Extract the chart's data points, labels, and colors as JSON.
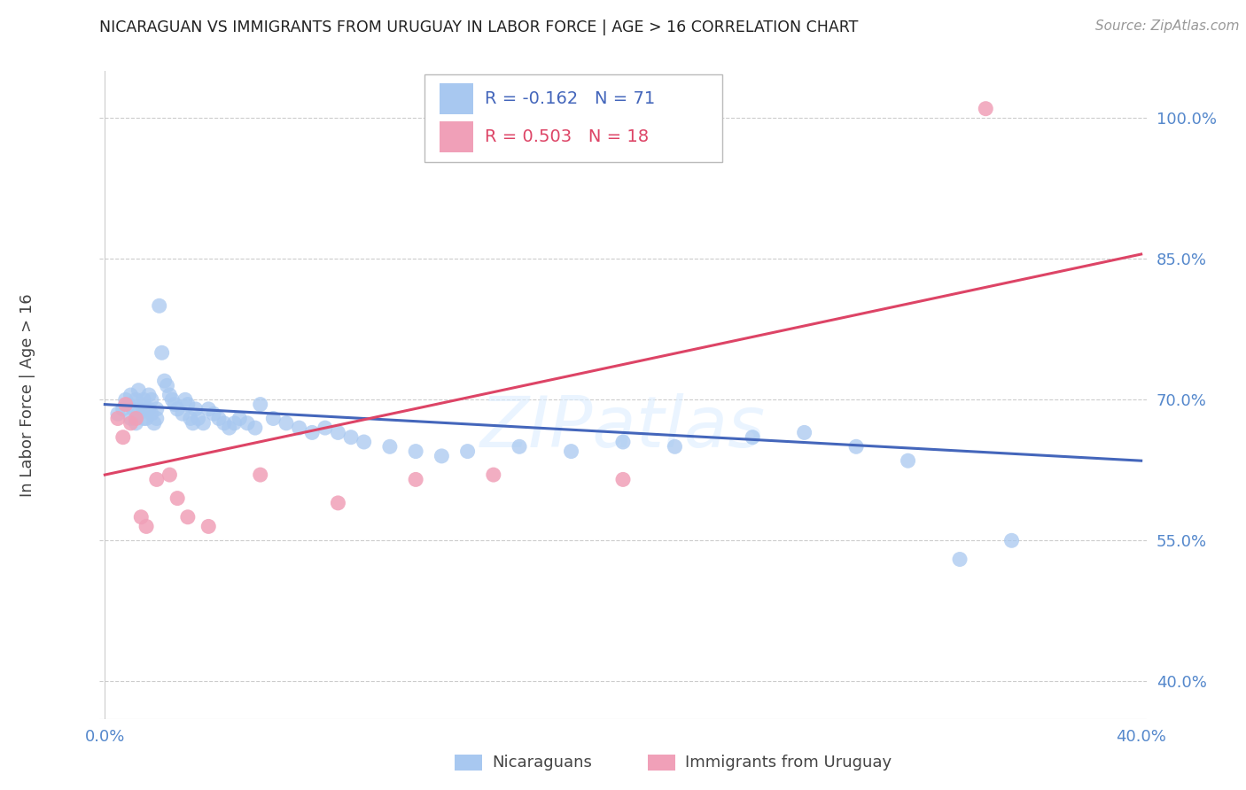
{
  "title": "NICARAGUAN VS IMMIGRANTS FROM URUGUAY IN LABOR FORCE | AGE > 16 CORRELATION CHART",
  "source": "Source: ZipAtlas.com",
  "ylabel": "In Labor Force | Age > 16",
  "yticks": [
    40.0,
    55.0,
    70.0,
    85.0,
    100.0
  ],
  "ytick_labels": [
    "40.0%",
    "55.0%",
    "70.0%",
    "85.0%",
    "100.0%"
  ],
  "ylim": [
    36.0,
    105.0
  ],
  "xlim": [
    -0.002,
    0.402
  ],
  "xticks": [
    0.0,
    0.4
  ],
  "xtick_labels": [
    "0.0%",
    "40.0%"
  ],
  "blue_R": "-0.162",
  "blue_N": "71",
  "pink_R": "0.503",
  "pink_N": "18",
  "blue_color": "#A8C8F0",
  "pink_color": "#F0A0B8",
  "blue_line_color": "#4466BB",
  "pink_line_color": "#DD4466",
  "blue_points_x": [
    0.005,
    0.007,
    0.008,
    0.009,
    0.01,
    0.01,
    0.011,
    0.012,
    0.012,
    0.013,
    0.013,
    0.014,
    0.015,
    0.015,
    0.016,
    0.016,
    0.017,
    0.017,
    0.018,
    0.018,
    0.019,
    0.02,
    0.02,
    0.021,
    0.022,
    0.023,
    0.024,
    0.025,
    0.026,
    0.027,
    0.028,
    0.03,
    0.031,
    0.032,
    0.033,
    0.034,
    0.035,
    0.036,
    0.038,
    0.04,
    0.042,
    0.044,
    0.046,
    0.048,
    0.05,
    0.052,
    0.055,
    0.058,
    0.06,
    0.065,
    0.07,
    0.075,
    0.08,
    0.085,
    0.09,
    0.095,
    0.1,
    0.11,
    0.12,
    0.13,
    0.14,
    0.16,
    0.18,
    0.2,
    0.22,
    0.25,
    0.27,
    0.29,
    0.31,
    0.33,
    0.35
  ],
  "blue_points_y": [
    68.5,
    69.0,
    70.0,
    69.5,
    68.0,
    70.5,
    69.0,
    67.5,
    70.0,
    68.5,
    71.0,
    69.5,
    68.0,
    70.0,
    69.0,
    68.0,
    70.5,
    69.0,
    68.5,
    70.0,
    67.5,
    69.0,
    68.0,
    80.0,
    75.0,
    72.0,
    71.5,
    70.5,
    70.0,
    69.5,
    69.0,
    68.5,
    70.0,
    69.5,
    68.0,
    67.5,
    69.0,
    68.0,
    67.5,
    69.0,
    68.5,
    68.0,
    67.5,
    67.0,
    67.5,
    68.0,
    67.5,
    67.0,
    69.5,
    68.0,
    67.5,
    67.0,
    66.5,
    67.0,
    66.5,
    66.0,
    65.5,
    65.0,
    64.5,
    64.0,
    64.5,
    65.0,
    64.5,
    65.5,
    65.0,
    66.0,
    66.5,
    65.0,
    63.5,
    53.0,
    55.0
  ],
  "pink_points_x": [
    0.005,
    0.007,
    0.008,
    0.01,
    0.012,
    0.014,
    0.016,
    0.02,
    0.025,
    0.028,
    0.032,
    0.04,
    0.06,
    0.09,
    0.12,
    0.15,
    0.2,
    0.34
  ],
  "pink_points_y": [
    68.0,
    66.0,
    69.5,
    67.5,
    68.0,
    57.5,
    56.5,
    61.5,
    62.0,
    59.5,
    57.5,
    56.5,
    62.0,
    59.0,
    61.5,
    62.0,
    61.5,
    101.0
  ],
  "blue_trendline_x": [
    0.0,
    0.4
  ],
  "blue_trendline_y": [
    69.5,
    63.5
  ],
  "pink_trendline_x": [
    0.0,
    0.4
  ],
  "pink_trendline_y": [
    62.0,
    85.5
  ],
  "legend_R_blue_color": "#4466BB",
  "legend_N_blue_color": "#4466BB",
  "legend_R_pink_color": "#DD4466",
  "legend_N_pink_color": "#4466BB"
}
